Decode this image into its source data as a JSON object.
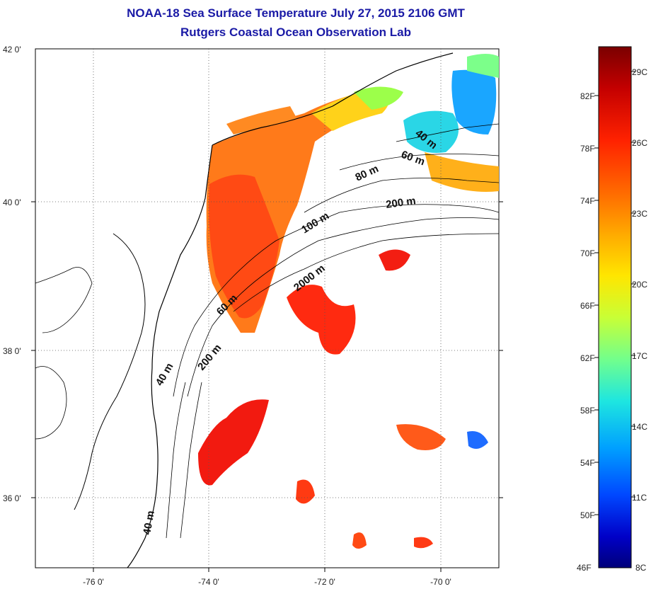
{
  "header": {
    "title": "NOAA-18 Sea Surface Temperature July 27, 2015 2106 GMT",
    "subtitle": "Rutgers Coastal Ocean Observation Lab"
  },
  "map": {
    "lat_ticks": [
      "42 0'",
      "40 0'",
      "38 0'",
      "36 0'"
    ],
    "lon_ticks": [
      "-76 0'",
      "-74 0'",
      "-72 0'",
      "-70 0'"
    ],
    "contour_labels": [
      "40 m",
      "60 m",
      "80 m",
      "200 m",
      "100 m",
      "2000 m",
      "60 m",
      "200 m",
      "40 m",
      "40 m"
    ]
  },
  "colorbar": {
    "fahrenheit": [
      "82F",
      "78F",
      "74F",
      "70F",
      "66F",
      "62F",
      "58F",
      "54F",
      "50F",
      "46F"
    ],
    "celsius": [
      "29C",
      "26C",
      "23C",
      "20C",
      "17C",
      "14C",
      "11C",
      "8C"
    ],
    "colors": [
      "#7a0000",
      "#c40000",
      "#ff2200",
      "#ff6a00",
      "#ffaa00",
      "#ffe600",
      "#c8ff36",
      "#72ff8c",
      "#1ee6e0",
      "#00a0ff",
      "#0048ff",
      "#0000c8",
      "#00007a"
    ]
  }
}
